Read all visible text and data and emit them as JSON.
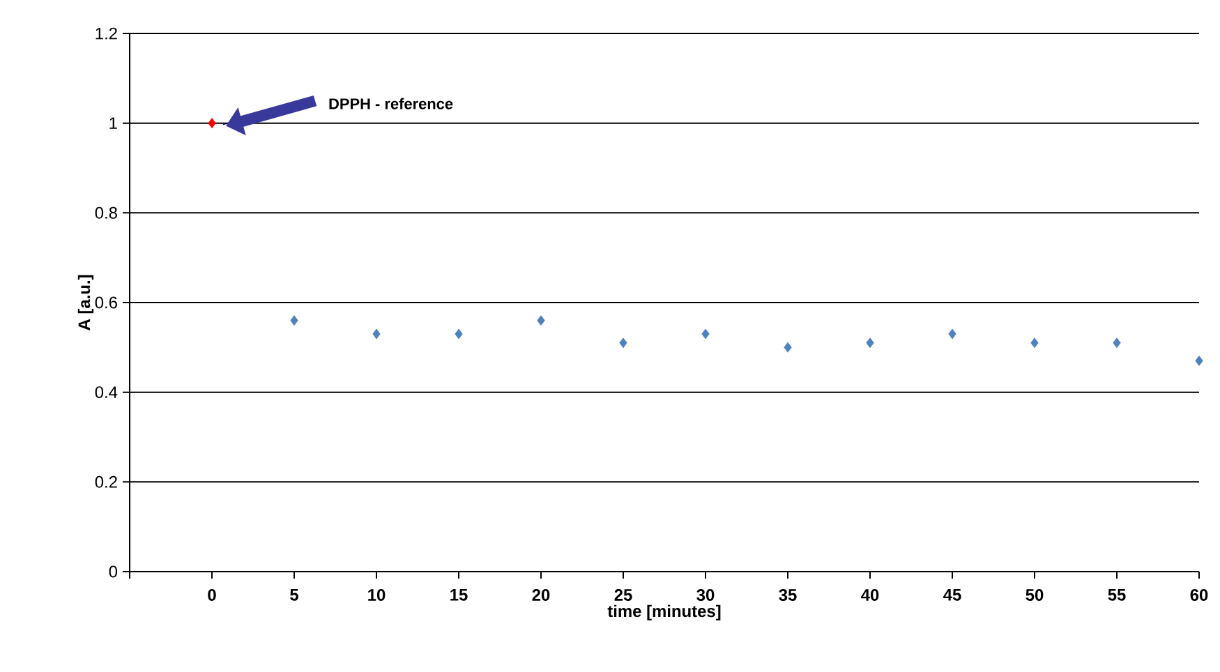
{
  "chart_data": {
    "type": "scatter",
    "xlabel": "time [minutes]",
    "ylabel": "A [a.u.]",
    "xlim": [
      -5,
      60
    ],
    "ylim": [
      0,
      1.2
    ],
    "xticks": [
      {
        "value": -5,
        "label": null
      },
      0,
      5,
      10,
      15,
      20,
      25,
      30,
      35,
      40,
      45,
      50,
      55,
      60
    ],
    "yticks": [
      0,
      0.2,
      0.4,
      0.6,
      0.8,
      1,
      1.2
    ],
    "grid": "y",
    "marker": "diamond",
    "series": [
      {
        "color": "#ff0000",
        "x": [
          0
        ],
        "values": [
          1
        ]
      },
      {
        "color": "#4f81bd",
        "x": [
          5,
          10,
          15,
          20,
          25,
          30,
          35,
          40,
          45,
          50,
          55,
          60
        ],
        "values": [
          0.56,
          0.53,
          0.53,
          0.56,
          0.51,
          0.53,
          0.5,
          0.51,
          0.53,
          0.51,
          0.51,
          0.47
        ]
      }
    ],
    "annotations": [
      {
        "text": "DPPH  - reference",
        "x": 0,
        "y": 1
      }
    ]
  }
}
